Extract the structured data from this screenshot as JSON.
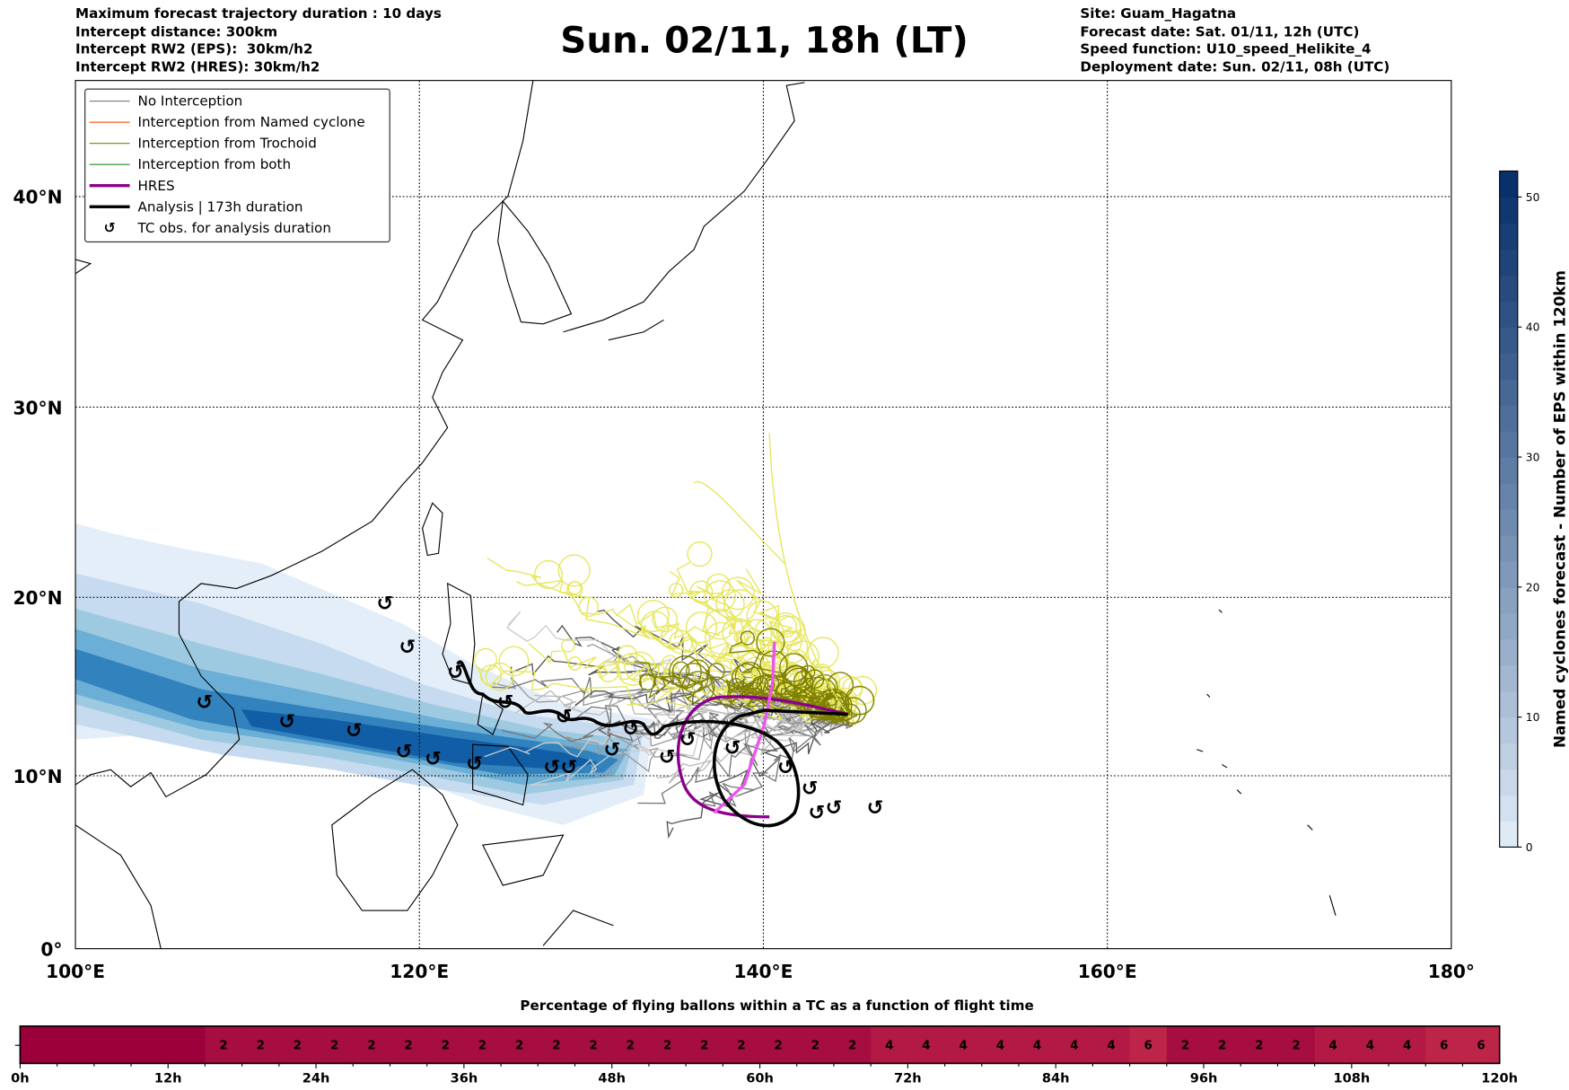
{
  "header_left": [
    "Maximum forecast trajectory duration : 10 days",
    "Intercept distance: 300km",
    "Intercept RW2 (EPS):  30km/h2",
    "Intercept RW2 (HRES): 30km/h2"
  ],
  "title": "Sun. 02/11, 18h (LT)",
  "header_right": [
    "Site: Guam_Hagatna",
    "Forecast date: Sat. 01/11, 12h (UTC)",
    "Speed function: U10_speed_Helikite_4",
    "Deployment date: Sun. 02/11, 08h (UTC)"
  ],
  "legend": [
    {
      "label": "No Interception",
      "color": "#777777"
    },
    {
      "label": "Interception from Named cyclone",
      "color": "#ff4500"
    },
    {
      "label": "Interception from Trochoid",
      "color": "#808000"
    },
    {
      "label": "Interception from both",
      "color": "#228b22"
    },
    {
      "label": "HRES",
      "color": "#8b008b"
    },
    {
      "label": "Analysis | 173h duration",
      "color": "#000000"
    },
    {
      "label": "TC obs. for analysis duration",
      "icon": "cyclone-symbol"
    }
  ],
  "chart_data": [
    {
      "type": "map",
      "projection": "mercator",
      "x_ticks": [
        "100°E",
        "120°E",
        "140°E",
        "160°E",
        "180°"
      ],
      "lon_range": [
        100,
        180
      ],
      "y_ticks": [
        "0°",
        "10°N",
        "20°N",
        "30°N",
        "40°N"
      ],
      "lat_range": [
        0,
        45
      ],
      "site": {
        "name": "Guam_Hagatna",
        "lon": 144.8,
        "lat": 13.5
      },
      "tc_obs": [
        [
          107.5,
          14.2
        ],
        [
          112.3,
          13.1
        ],
        [
          116.2,
          12.6
        ],
        [
          119.1,
          11.4
        ],
        [
          120.8,
          11.0
        ],
        [
          123.2,
          10.7
        ],
        [
          125.0,
          14.2
        ],
        [
          128.4,
          13.4
        ],
        [
          127.7,
          10.5
        ],
        [
          128.7,
          10.5
        ],
        [
          131.2,
          11.5
        ],
        [
          132.3,
          12.7
        ],
        [
          134.4,
          11.1
        ],
        [
          135.6,
          12.1
        ],
        [
          138.2,
          11.6
        ],
        [
          141.3,
          10.5
        ],
        [
          142.7,
          9.3
        ],
        [
          143.1,
          7.9
        ],
        [
          144.1,
          8.2
        ],
        [
          146.5,
          8.2
        ],
        [
          119.3,
          17.3
        ],
        [
          118.0,
          19.7
        ],
        [
          122.1,
          15.9
        ]
      ],
      "colorbar": {
        "label": "Named cyclones forecast - Number of EPS within 120km",
        "ticks": [
          "0",
          "10",
          "20",
          "30",
          "40",
          "50"
        ],
        "range": [
          0,
          52
        ]
      }
    },
    {
      "type": "heatmap",
      "title": "Percentage of flying ballons within a TC as a function of flight time",
      "x_ticks": [
        "0h",
        "12h",
        "24h",
        "36h",
        "48h",
        "60h",
        "72h",
        "84h",
        "96h",
        "108h",
        "120h"
      ],
      "bin_hours": 3,
      "values": [
        0,
        0,
        0,
        0,
        0,
        2,
        2,
        2,
        2,
        2,
        2,
        2,
        2,
        2,
        2,
        2,
        2,
        2,
        2,
        2,
        2,
        2,
        2,
        4,
        4,
        4,
        4,
        4,
        4,
        4,
        6,
        2,
        2,
        2,
        2,
        4,
        4,
        4,
        6,
        6
      ]
    }
  ]
}
